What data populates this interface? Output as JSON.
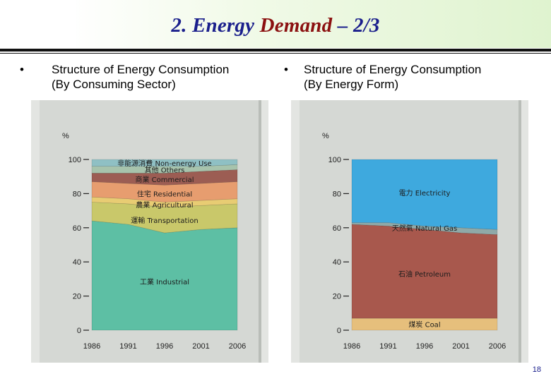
{
  "slide": {
    "title_prefix": "2. Energy ",
    "title_accent": "Demand",
    "title_suffix": " – 2/3",
    "bullet_glyph": "•",
    "left_heading_line1": "Structure of Energy Consumption",
    "left_heading_line2": "(By Consuming Sector)",
    "right_heading_line1": "Structure of Energy Consumption",
    "right_heading_line2": "(By Energy Form)",
    "page_number": "18"
  },
  "chart_data": [
    {
      "type": "area",
      "stacked": true,
      "ylabel": "%",
      "ylim": [
        0,
        100
      ],
      "yticks": [
        0,
        20,
        40,
        60,
        80,
        100
      ],
      "x": [
        1986,
        1991,
        1996,
        2001,
        2006
      ],
      "x_tick_labels": [
        "1986",
        "1991",
        "1996",
        "2001",
        "2006"
      ],
      "series": [
        {
          "name": "工業 Industrial",
          "values": [
            64,
            62,
            57,
            59,
            60
          ],
          "color": "#5dbfa4"
        },
        {
          "name": "運輸 Transportation",
          "values": [
            11,
            12,
            15,
            14,
            14
          ],
          "color": "#c9c86a"
        },
        {
          "name": "農業 Agricultural",
          "values": [
            3,
            3,
            3,
            3,
            3
          ],
          "color": "#e8cc73"
        },
        {
          "name": "住宅 Residential",
          "values": [
            9,
            9,
            10,
            10,
            10
          ],
          "color": "#e79d6f"
        },
        {
          "name": "商業 Commercial",
          "values": [
            5,
            6,
            7,
            7,
            7
          ],
          "color": "#9c5d53"
        },
        {
          "name": "其他 Others",
          "values": [
            4,
            4,
            4,
            3,
            3
          ],
          "color": "#a7c3ac"
        },
        {
          "name": "非能源消費 Non-energy Use",
          "values": [
            4,
            4,
            4,
            4,
            3
          ],
          "color": "#8fc0c4"
        }
      ]
    },
    {
      "type": "area",
      "stacked": true,
      "ylabel": "%",
      "ylim": [
        0,
        100
      ],
      "yticks": [
        0,
        20,
        40,
        60,
        80,
        100
      ],
      "x": [
        1986,
        1991,
        1996,
        2001,
        2006
      ],
      "x_tick_labels": [
        "1986",
        "1991",
        "1996",
        "2001",
        "2006"
      ],
      "series": [
        {
          "name": "煤炭 Coal",
          "values": [
            7,
            7,
            7,
            7,
            7
          ],
          "color": "#e6bf7c"
        },
        {
          "name": "石油 Petroleum",
          "values": [
            55,
            54,
            52,
            50,
            49
          ],
          "color": "#a8584d"
        },
        {
          "name": "天然氣 Natural Gas",
          "values": [
            1,
            2,
            2,
            3,
            3
          ],
          "color": "#8fa9a8"
        },
        {
          "name": "電力 Electricity",
          "values": [
            37,
            37,
            39,
            40,
            41
          ],
          "color": "#3ea9de"
        }
      ]
    }
  ]
}
